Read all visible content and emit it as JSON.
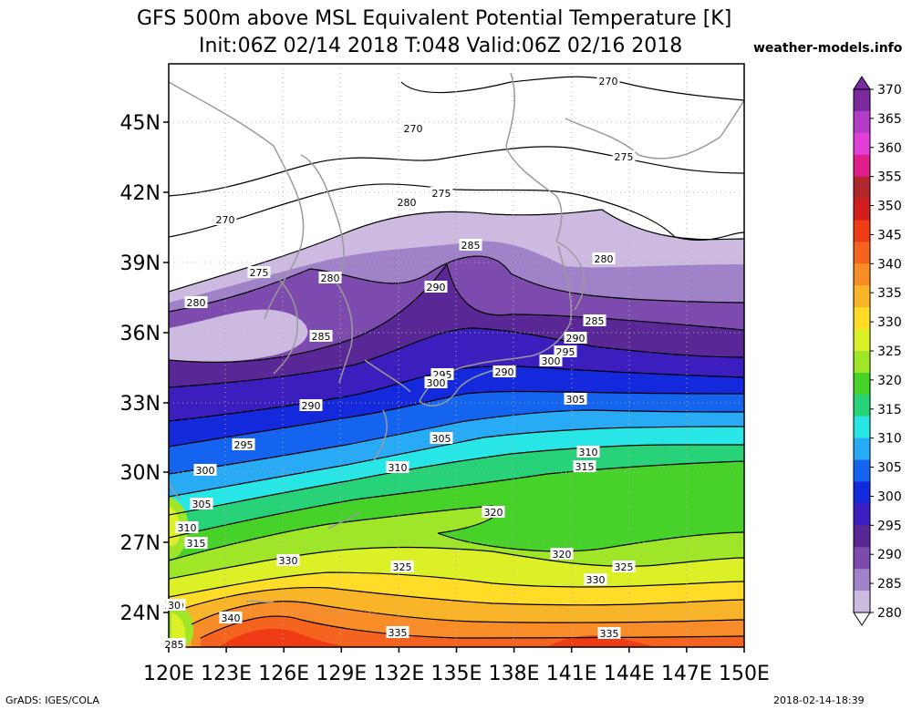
{
  "title_line1": "GFS 500m above MSL Equivalent Potential Temperature [K]",
  "title_line2": "Init:06Z 02/14 2018 T:048 Valid:06Z 02/16 2018",
  "credit": "weather-models.info",
  "footer_left": "GrADS: IGES/COLA",
  "footer_right": "2018-02-14-18:39",
  "map": {
    "projection": "lat-lon",
    "lon_range": [
      120,
      150
    ],
    "lat_range": [
      22.5,
      47.5
    ],
    "lon_ticks": [
      "120E",
      "123E",
      "126E",
      "129E",
      "132E",
      "135E",
      "138E",
      "141E",
      "144E",
      "147E",
      "150E"
    ],
    "lat_ticks": [
      "24N",
      "27N",
      "30N",
      "33N",
      "36N",
      "39N",
      "42N",
      "45N"
    ],
    "contour_labels": [
      {
        "text": "270"
      },
      {
        "text": "270"
      },
      {
        "text": "270"
      },
      {
        "text": "275"
      },
      {
        "text": "275"
      },
      {
        "text": "275"
      },
      {
        "text": "280"
      },
      {
        "text": "280"
      },
      {
        "text": "280"
      },
      {
        "text": "280"
      },
      {
        "text": "285"
      },
      {
        "text": "285"
      },
      {
        "text": "285"
      },
      {
        "text": "290"
      },
      {
        "text": "290"
      },
      {
        "text": "290"
      },
      {
        "text": "290"
      },
      {
        "text": "295"
      },
      {
        "text": "295"
      },
      {
        "text": "295"
      },
      {
        "text": "300"
      },
      {
        "text": "300"
      },
      {
        "text": "300"
      },
      {
        "text": "300"
      },
      {
        "text": "305"
      },
      {
        "text": "305"
      },
      {
        "text": "305"
      },
      {
        "text": "310"
      },
      {
        "text": "310"
      },
      {
        "text": "310"
      },
      {
        "text": "315"
      },
      {
        "text": "315"
      },
      {
        "text": "320"
      },
      {
        "text": "320"
      },
      {
        "text": "325"
      },
      {
        "text": "325"
      },
      {
        "text": "330"
      },
      {
        "text": "330"
      },
      {
        "text": "30"
      },
      {
        "text": "335"
      },
      {
        "text": "335"
      },
      {
        "text": "340"
      },
      {
        "text": "285"
      }
    ]
  },
  "colorbar": {
    "labels": [
      "370",
      "365",
      "360",
      "355",
      "350",
      "345",
      "340",
      "335",
      "330",
      "325",
      "320",
      "315",
      "310",
      "305",
      "300",
      "295",
      "290",
      "285",
      "280"
    ],
    "colors": [
      "#7a2a9c",
      "#b43cc8",
      "#e040d8",
      "#e01e8c",
      "#b0282d",
      "#d21e1e",
      "#f03c14",
      "#f5641e",
      "#f78c28",
      "#fab428",
      "#ffdc28",
      "#dcf028",
      "#a0e628",
      "#46d228",
      "#28d278",
      "#28e6e6",
      "#28aaf5",
      "#1464f0",
      "#1428dc",
      "#3c1ebe",
      "#5a2896",
      "#7d4bad",
      "#a082c8",
      "#cdbae1"
    ]
  }
}
